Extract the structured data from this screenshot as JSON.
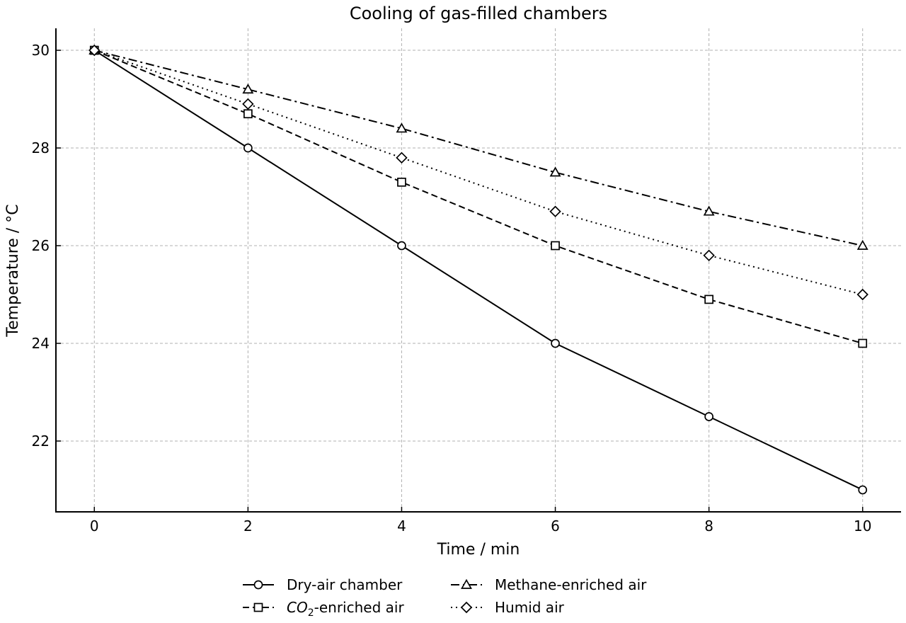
{
  "chart_data": {
    "type": "line",
    "title": "Cooling of gas-filled chambers",
    "xlabel": "Time / min",
    "ylabel": "Temperature / °C",
    "x": [
      0,
      2,
      4,
      6,
      8,
      10
    ],
    "xlim": [
      -0.5,
      10.5
    ],
    "ylim": [
      20.55,
      30.45
    ],
    "xticks": [
      0,
      2,
      4,
      6,
      8,
      10
    ],
    "yticks": [
      22,
      24,
      26,
      28,
      30
    ],
    "grid": true,
    "legend_position": "bottom-center",
    "series": [
      {
        "name_prefix": "Dry-air chamber",
        "name_sub": "",
        "name_suffix": "",
        "marker": "circle",
        "dash": "solid",
        "values": [
          30.0,
          28.0,
          26.0,
          24.0,
          22.5,
          21.0
        ]
      },
      {
        "name_prefix": "CO",
        "name_sub": "2",
        "name_suffix": "-enriched air",
        "marker": "square",
        "dash": "dashed",
        "values": [
          30.0,
          28.7,
          27.3,
          26.0,
          24.9,
          24.0
        ]
      },
      {
        "name_prefix": "Methane-enriched air",
        "name_sub": "",
        "name_suffix": "",
        "marker": "triangle",
        "dash": "dashdot",
        "values": [
          30.0,
          29.2,
          28.4,
          27.5,
          26.7,
          26.0
        ]
      },
      {
        "name_prefix": "Humid air",
        "name_sub": "",
        "name_suffix": "",
        "marker": "diamond",
        "dash": "dotted",
        "values": [
          30.0,
          28.9,
          27.8,
          26.7,
          25.8,
          25.0
        ]
      }
    ]
  }
}
